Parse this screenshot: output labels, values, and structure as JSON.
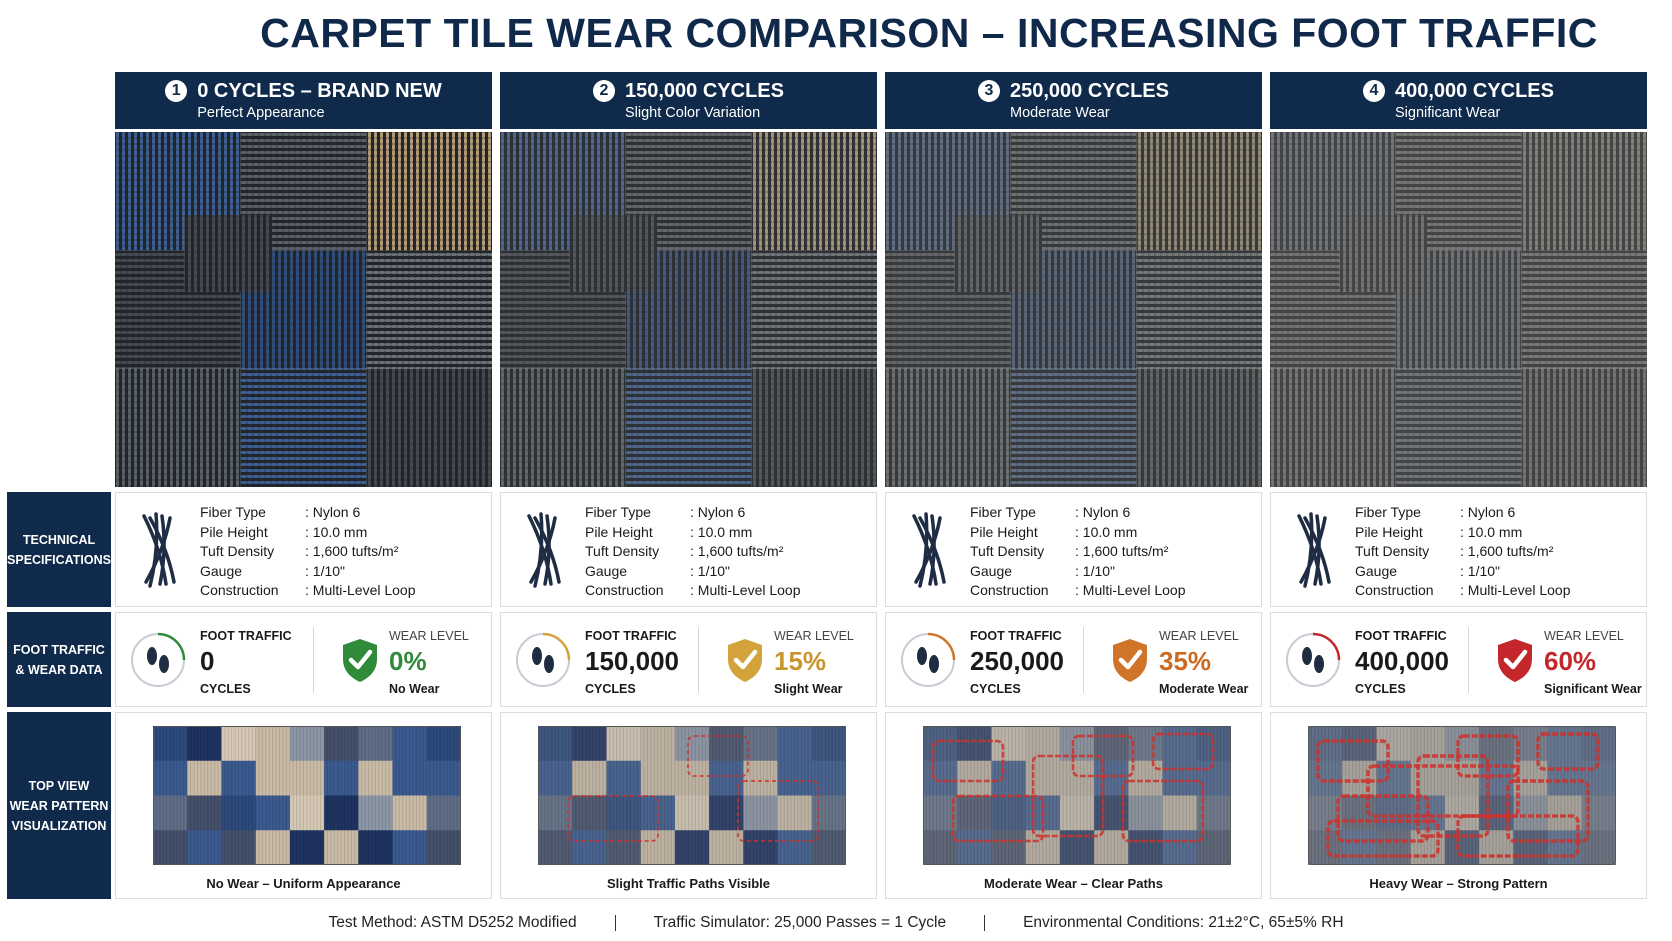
{
  "title": "CARPET TILE WEAR COMPARISON – INCREASING FOOT TRAFFIC",
  "row_labels": [
    [
      "TECHNICAL",
      "SPECIFICATIONS"
    ],
    [
      "FOOT TRAFFIC",
      "& WEAR DATA"
    ],
    [
      "TOP VIEW",
      "WEAR PATTERN",
      "VISUALIZATION"
    ]
  ],
  "columns": [
    {
      "number": 1,
      "heading": "0 CYCLES – BRAND NEW",
      "subheading": "Perfect Appearance",
      "specs": [
        [
          "Fiber Type",
          ": Nylon 6"
        ],
        [
          "Pile Height",
          ": 10.0 mm"
        ],
        [
          "Tuft Density",
          ": 1,600 tufts/m²"
        ],
        [
          "Gauge",
          ": 1/10\""
        ],
        [
          "Construction",
          ": Multi-Level Loop"
        ]
      ],
      "traffic_label": "FOOT TRAFFIC",
      "cycles": "0",
      "cycles_unit": "CYCLES",
      "wear_label": "WEAR LEVEL",
      "wear": "0%",
      "wear_text": "No Wear",
      "caption": "No Wear – Uniform Appearance"
    },
    {
      "number": 2,
      "heading": "150,000 CYCLES",
      "subheading": "Slight Color Variation",
      "specs": [
        [
          "Fiber Type",
          ": Nylon 6"
        ],
        [
          "Pile Height",
          ": 10.0 mm"
        ],
        [
          "Tuft Density",
          ": 1,600 tufts/m²"
        ],
        [
          "Gauge",
          ": 1/10\""
        ],
        [
          "Construction",
          ": Multi-Level Loop"
        ]
      ],
      "traffic_label": "FOOT TRAFFIC",
      "cycles": "150,000",
      "cycles_unit": "CYCLES",
      "wear_label": "WEAR LEVEL",
      "wear": "15%",
      "wear_text": "Slight Wear",
      "caption": "Slight Traffic Paths Visible"
    },
    {
      "number": 3,
      "heading": "250,000 CYCLES",
      "subheading": "Moderate Wear",
      "specs": [
        [
          "Fiber Type",
          ": Nylon 6"
        ],
        [
          "Pile Height",
          ": 10.0 mm"
        ],
        [
          "Tuft Density",
          ": 1,600 tufts/m²"
        ],
        [
          "Gauge",
          ": 1/10\""
        ],
        [
          "Construction",
          ": Multi-Level Loop"
        ]
      ],
      "traffic_label": "FOOT TRAFFIC",
      "cycles": "250,000",
      "cycles_unit": "CYCLES",
      "wear_label": "WEAR LEVEL",
      "wear": "35%",
      "wear_text": "Moderate Wear",
      "caption": "Moderate Wear – Clear Paths"
    },
    {
      "number": 4,
      "heading": "400,000 CYCLES",
      "subheading": "Significant Wear",
      "specs": [
        [
          "Fiber Type",
          ": Nylon 6"
        ],
        [
          "Pile Height",
          ": 10.0 mm"
        ],
        [
          "Tuft Density",
          ": 1,600 tufts/m²"
        ],
        [
          "Gauge",
          ": 1/10\""
        ],
        [
          "Construction",
          ": Multi-Level Loop"
        ]
      ],
      "traffic_label": "FOOT TRAFFIC",
      "cycles": "400,000",
      "cycles_unit": "CYCLES",
      "wear_label": "WEAR LEVEL",
      "wear": "60%",
      "wear_text": "Significant Wear",
      "caption": "Heavy Wear – Strong Pattern"
    }
  ],
  "footer": [
    "Test Method: ASTM D5252 Modified",
    "Traffic Simulator: 25,000 Passes = 1 Cycle",
    "Environmental Conditions: 21±2°C, 65±5% RH"
  ]
}
